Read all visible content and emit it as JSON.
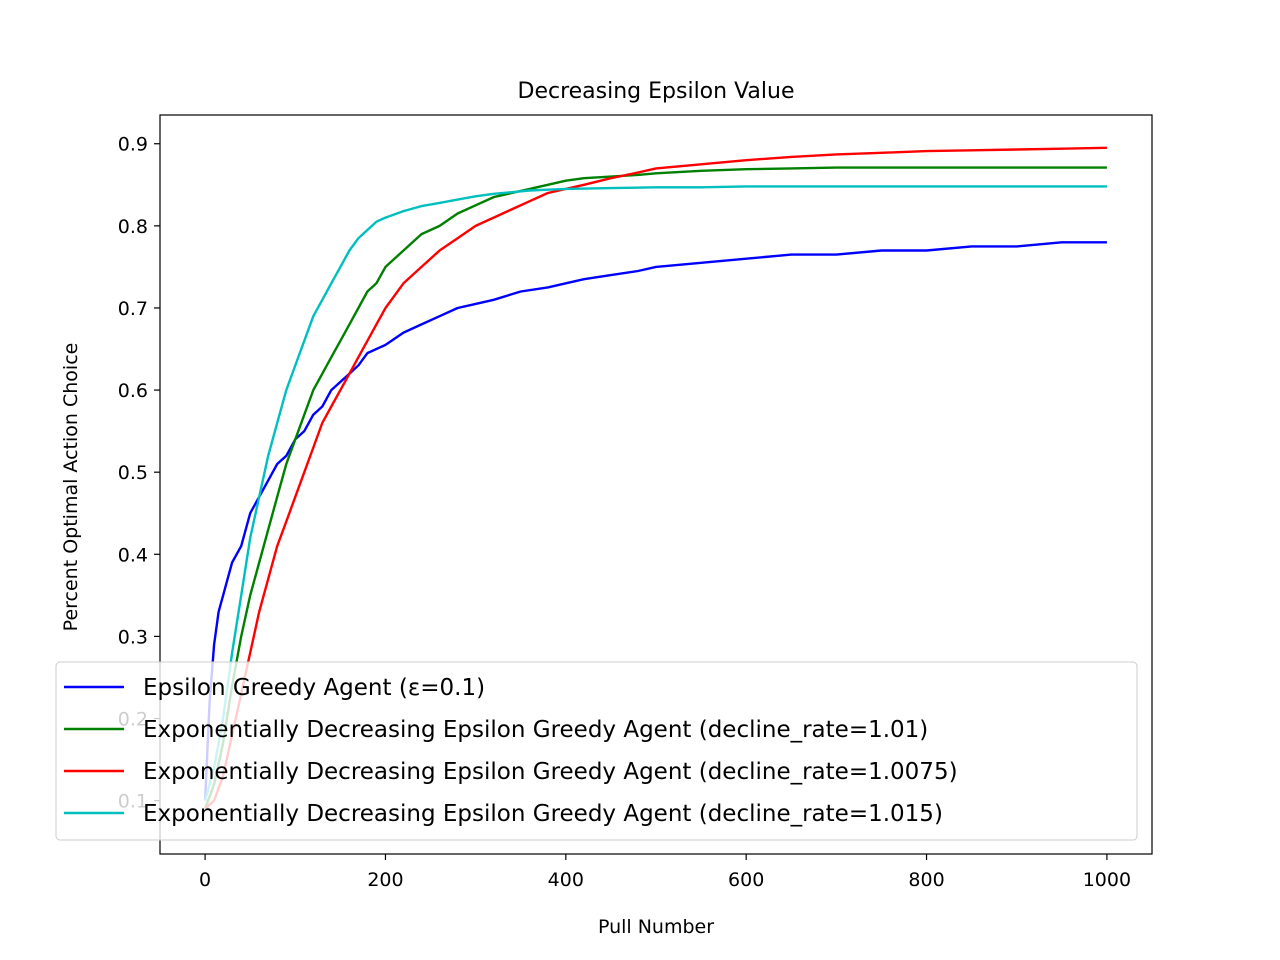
{
  "chart_data": {
    "type": "line",
    "title": "Decreasing Epsilon Value",
    "xlabel": "Pull Number",
    "ylabel": "Percent Optimal Action Choice",
    "xlim": [
      -50,
      1050
    ],
    "ylim": [
      0.035,
      0.935
    ],
    "x_ticks": [
      0,
      200,
      400,
      600,
      800,
      1000
    ],
    "y_ticks": [
      0.1,
      0.2,
      0.3,
      0.4,
      0.5,
      0.6,
      0.7,
      0.8,
      0.9
    ],
    "x_tick_labels": [
      "0",
      "200",
      "400",
      "600",
      "800",
      "1000"
    ],
    "y_tick_labels": [
      "0.1",
      "0.2",
      "0.3",
      "0.4",
      "0.5",
      "0.6",
      "0.7",
      "0.8",
      "0.9"
    ],
    "grid": false,
    "legend_position": "lower-left",
    "series": [
      {
        "name": "Epsilon Greedy Agent (ε=0.1)",
        "color": "#0000ff",
        "x": [
          0,
          5,
          10,
          15,
          20,
          25,
          30,
          40,
          50,
          60,
          70,
          80,
          90,
          100,
          110,
          120,
          130,
          140,
          150,
          160,
          170,
          180,
          200,
          220,
          240,
          260,
          280,
          300,
          320,
          350,
          380,
          400,
          420,
          450,
          480,
          500,
          550,
          600,
          650,
          700,
          750,
          800,
          850,
          900,
          950,
          1000
        ],
        "y": [
          0.1,
          0.22,
          0.29,
          0.33,
          0.35,
          0.37,
          0.39,
          0.41,
          0.45,
          0.47,
          0.49,
          0.51,
          0.52,
          0.54,
          0.55,
          0.57,
          0.58,
          0.6,
          0.61,
          0.62,
          0.63,
          0.645,
          0.655,
          0.67,
          0.68,
          0.69,
          0.7,
          0.705,
          0.71,
          0.72,
          0.725,
          0.73,
          0.735,
          0.74,
          0.745,
          0.75,
          0.755,
          0.76,
          0.765,
          0.765,
          0.77,
          0.77,
          0.775,
          0.775,
          0.78,
          0.78
        ]
      },
      {
        "name": "Exponentially Decreasing Epsilon Greedy Agent (decline_rate=1.01)",
        "color": "#008000",
        "x": [
          0,
          10,
          20,
          30,
          40,
          50,
          60,
          70,
          80,
          90,
          100,
          110,
          120,
          130,
          140,
          150,
          160,
          170,
          180,
          190,
          200,
          220,
          240,
          260,
          280,
          300,
          320,
          340,
          360,
          380,
          400,
          420,
          450,
          480,
          500,
          550,
          600,
          650,
          700,
          800,
          900,
          1000
        ],
        "y": [
          0.09,
          0.12,
          0.17,
          0.24,
          0.3,
          0.35,
          0.39,
          0.43,
          0.47,
          0.51,
          0.54,
          0.57,
          0.6,
          0.62,
          0.64,
          0.66,
          0.68,
          0.7,
          0.72,
          0.73,
          0.75,
          0.77,
          0.79,
          0.8,
          0.815,
          0.825,
          0.835,
          0.84,
          0.845,
          0.85,
          0.855,
          0.858,
          0.86,
          0.862,
          0.864,
          0.867,
          0.869,
          0.87,
          0.871,
          0.871,
          0.871,
          0.871
        ]
      },
      {
        "name": "Exponentially Decreasing Epsilon Greedy Agent (decline_rate=1.0075)",
        "color": "#ff0000",
        "x": [
          0,
          10,
          20,
          30,
          40,
          50,
          60,
          70,
          80,
          90,
          100,
          110,
          120,
          130,
          140,
          150,
          160,
          170,
          180,
          190,
          200,
          220,
          240,
          260,
          280,
          300,
          320,
          340,
          360,
          380,
          400,
          420,
          450,
          480,
          500,
          550,
          600,
          650,
          700,
          750,
          800,
          850,
          900,
          950,
          1000
        ],
        "y": [
          0.09,
          0.1,
          0.13,
          0.18,
          0.23,
          0.28,
          0.33,
          0.37,
          0.41,
          0.44,
          0.47,
          0.5,
          0.53,
          0.56,
          0.58,
          0.6,
          0.62,
          0.64,
          0.66,
          0.68,
          0.7,
          0.73,
          0.75,
          0.77,
          0.785,
          0.8,
          0.81,
          0.82,
          0.83,
          0.84,
          0.845,
          0.85,
          0.858,
          0.865,
          0.87,
          0.875,
          0.88,
          0.884,
          0.887,
          0.889,
          0.891,
          0.892,
          0.893,
          0.894,
          0.895
        ]
      },
      {
        "name": "Exponentially Decreasing Epsilon Greedy Agent (decline_rate=1.015)",
        "color": "#00bfbf",
        "x": [
          0,
          10,
          20,
          30,
          40,
          50,
          60,
          70,
          80,
          90,
          100,
          110,
          120,
          130,
          140,
          150,
          160,
          170,
          180,
          190,
          200,
          220,
          240,
          260,
          280,
          300,
          320,
          340,
          360,
          380,
          400,
          450,
          500,
          550,
          600,
          700,
          800,
          900,
          1000
        ],
        "y": [
          0.1,
          0.14,
          0.2,
          0.28,
          0.35,
          0.42,
          0.47,
          0.52,
          0.56,
          0.6,
          0.63,
          0.66,
          0.69,
          0.71,
          0.73,
          0.75,
          0.77,
          0.785,
          0.795,
          0.805,
          0.81,
          0.818,
          0.824,
          0.828,
          0.832,
          0.836,
          0.839,
          0.841,
          0.843,
          0.844,
          0.845,
          0.846,
          0.847,
          0.847,
          0.848,
          0.848,
          0.848,
          0.848,
          0.848
        ]
      }
    ]
  }
}
